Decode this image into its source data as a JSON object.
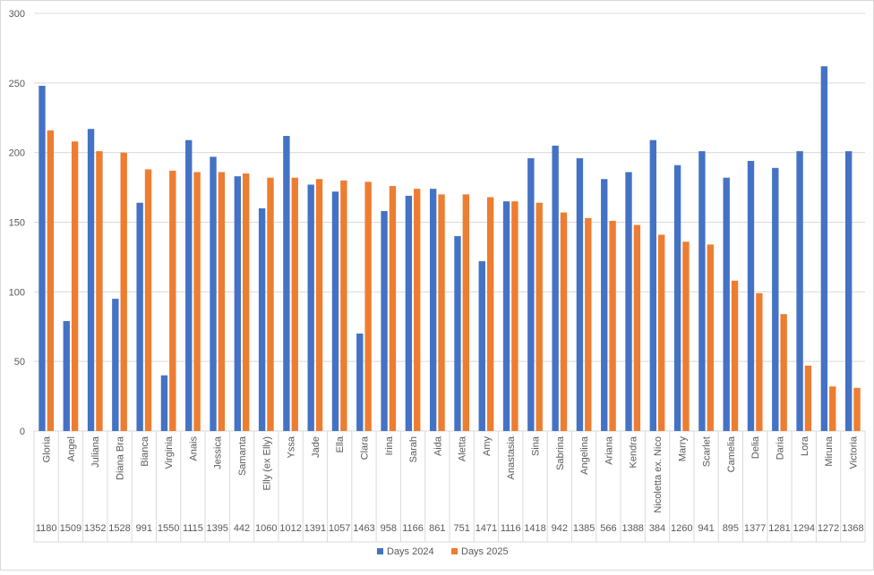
{
  "chart_data": {
    "type": "bar",
    "title": "",
    "xlabel": "",
    "ylabel": "",
    "ylim": [
      0,
      300
    ],
    "yticks": [
      0,
      50,
      100,
      150,
      200,
      250,
      300
    ],
    "grid": true,
    "legend_position": "bottom",
    "categories": [
      "Gloria",
      "Angel",
      "Juliana",
      "Diana Bra",
      "Bianca",
      "Virginia",
      "Anais",
      "Jessica",
      "Samanta",
      "Elly (ex Elly)",
      "Yssa",
      "Jade",
      "Ella",
      "Clara",
      "Irina",
      "Sarah",
      "Aida",
      "Aletta",
      "Amy",
      "Anastasia",
      "Sina",
      "Sabrina",
      "Angelina",
      "Ariana",
      "Kendra",
      "Nicoletta ex. Nico",
      "Marry",
      "Scarlet",
      "Camelia",
      "Delia",
      "Daria",
      "Lora",
      "Miruna",
      "Victoria"
    ],
    "table_row": [
      "1180",
      "1509",
      "1352",
      "1528",
      "991",
      "1550",
      "1115",
      "1395",
      "442",
      "1060",
      "1012",
      "1391",
      "1057",
      "1463",
      "958",
      "1166",
      "861",
      "751",
      "1471",
      "1116",
      "1418",
      "942",
      "1385",
      "566",
      "1388",
      "384",
      "1260",
      "941",
      "895",
      "1377",
      "1281",
      "1294",
      "1272",
      "1368"
    ],
    "series": [
      {
        "name": "Days 2024",
        "color": "#4472C4",
        "values": [
          248,
          79,
          217,
          95,
          164,
          40,
          209,
          197,
          183,
          160,
          212,
          177,
          172,
          70,
          158,
          169,
          174,
          140,
          122,
          165,
          196,
          205,
          196,
          181,
          186,
          209,
          191,
          201,
          182,
          194,
          189,
          201,
          262,
          201
        ]
      },
      {
        "name": "Days 2025",
        "color": "#ED7D31",
        "values": [
          216,
          208,
          201,
          200,
          188,
          187,
          186,
          186,
          185,
          182,
          182,
          181,
          180,
          179,
          176,
          174,
          170,
          170,
          168,
          165,
          164,
          157,
          153,
          151,
          148,
          141,
          136,
          134,
          108,
          99,
          84,
          47,
          32,
          31
        ]
      }
    ]
  }
}
